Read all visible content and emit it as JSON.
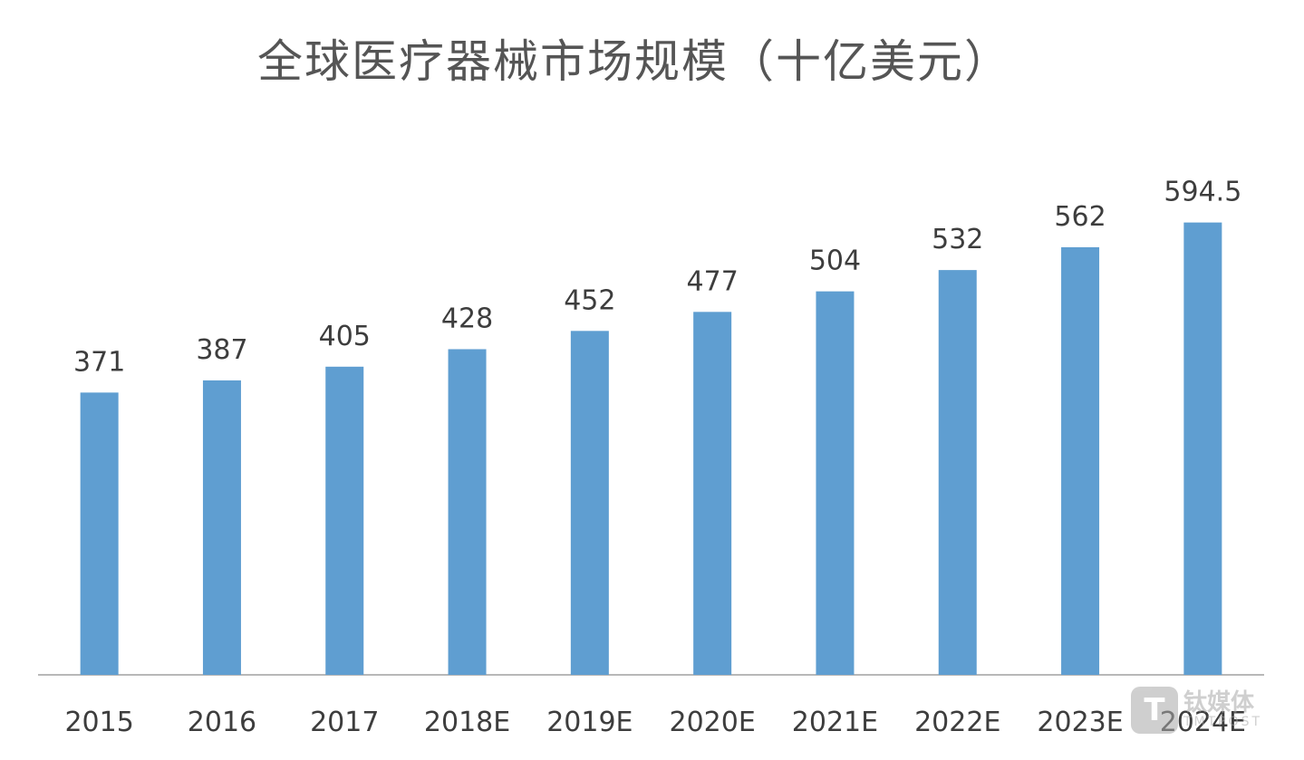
{
  "chart_data": {
    "type": "bar",
    "title": "全球医疗器械市场规模（十亿美元）",
    "xlabel": "",
    "ylabel": "",
    "categories": [
      "2015",
      "2016",
      "2017",
      "2018E",
      "2019E",
      "2020E",
      "2021E",
      "2022E",
      "2023E",
      "2024E"
    ],
    "values": [
      371,
      387,
      405,
      428,
      452,
      477,
      504,
      532,
      562,
      594.5
    ],
    "data_labels": [
      "371",
      "387",
      "405",
      "428",
      "452",
      "477",
      "504",
      "532",
      "562",
      "594.5"
    ],
    "ylim": [
      0,
      620
    ],
    "grid": false,
    "legend": "none",
    "bar_color": "#5f9ed1"
  },
  "watermark": {
    "icon_name": "tmtpost-logo-icon",
    "logo_letter": "T",
    "name": "钛媒体",
    "sub": "TMTPOST"
  }
}
